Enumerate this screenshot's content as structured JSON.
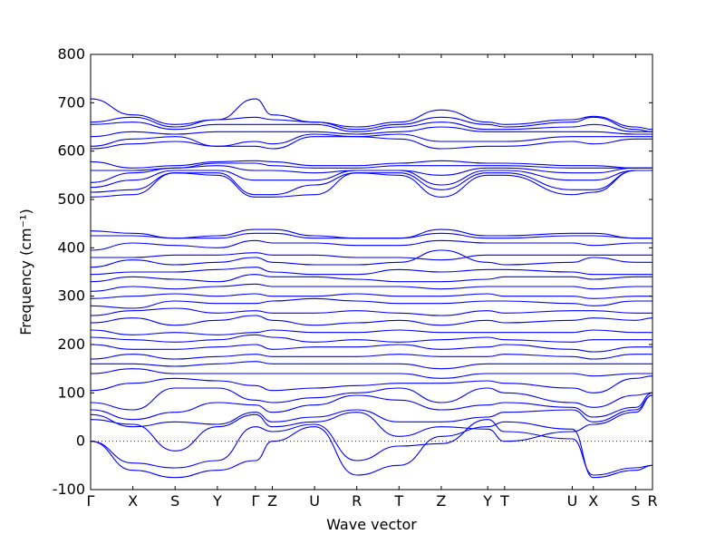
{
  "chart_data": {
    "type": "line",
    "xlabel": "Wave vector",
    "ylabel": "Frequency (cm⁻¹)",
    "ylim": [
      -100,
      800
    ],
    "y_ticks": [
      -100,
      0,
      100,
      200,
      300,
      400,
      500,
      600,
      700,
      800
    ],
    "x_points": [
      {
        "label": "Γ",
        "pos": 0.0
      },
      {
        "label": "X",
        "pos": 1.0
      },
      {
        "label": "S",
        "pos": 2.0
      },
      {
        "label": "Y",
        "pos": 3.0
      },
      {
        "label": "Γ",
        "pos": 3.9
      },
      {
        "label": "Z",
        "pos": 4.3
      },
      {
        "label": "U",
        "pos": 5.3
      },
      {
        "label": "R",
        "pos": 6.3
      },
      {
        "label": "T",
        "pos": 7.3
      },
      {
        "label": "Z",
        "pos": 8.3
      },
      {
        "label": "Y",
        "pos": 9.4
      },
      {
        "label": "T",
        "pos": 9.8
      },
      {
        "label": "U",
        "pos": 11.4
      },
      {
        "label": "X",
        "pos": 11.9
      },
      {
        "label": "S",
        "pos": 12.9
      },
      {
        "label": "R",
        "pos": 13.3
      }
    ],
    "zero_line": {
      "y": 0,
      "style": "dotted"
    },
    "grid": false,
    "legend": "none",
    "color": "#0000ff",
    "bands": [
      {
        "mode": "acoustic-1",
        "values": [
          0,
          -60,
          -75,
          -60,
          -40,
          0,
          30,
          -70,
          -50,
          10,
          30,
          40,
          25,
          -75,
          -60,
          -50
        ]
      },
      {
        "mode": "acoustic-2",
        "values": [
          0,
          -45,
          -55,
          -40,
          30,
          20,
          35,
          -40,
          -10,
          -5,
          45,
          20,
          5,
          -70,
          -55,
          -50
        ]
      },
      {
        "mode": "acoustic-3",
        "values": [
          45,
          35,
          -20,
          30,
          55,
          30,
          40,
          60,
          10,
          30,
          25,
          0,
          20,
          35,
          60,
          95
        ]
      },
      {
        "mode": "optical-01",
        "values": [
          55,
          30,
          40,
          35,
          60,
          40,
          50,
          65,
          40,
          40,
          50,
          60,
          65,
          40,
          65,
          95
        ]
      },
      {
        "mode": "optical-02",
        "values": [
          65,
          45,
          60,
          80,
          75,
          60,
          75,
          95,
          85,
          65,
          75,
          80,
          70,
          50,
          70,
          100
        ]
      },
      {
        "mode": "optical-03",
        "values": [
          80,
          65,
          110,
          110,
          85,
          80,
          90,
          100,
          110,
          80,
          110,
          100,
          80,
          70,
          95,
          100
        ]
      },
      {
        "mode": "optical-04",
        "values": [
          105,
          120,
          130,
          125,
          115,
          105,
          110,
          115,
          120,
          120,
          125,
          120,
          110,
          100,
          130,
          135
        ]
      },
      {
        "mode": "optical-05",
        "values": [
          140,
          150,
          140,
          140,
          140,
          140,
          140,
          140,
          140,
          130,
          140,
          140,
          140,
          135,
          140,
          140
        ]
      },
      {
        "mode": "optical-06",
        "values": [
          160,
          160,
          155,
          160,
          165,
          160,
          160,
          160,
          160,
          150,
          160,
          160,
          160,
          160,
          160,
          160
        ]
      },
      {
        "mode": "optical-07",
        "values": [
          170,
          180,
          170,
          175,
          180,
          175,
          175,
          175,
          180,
          175,
          175,
          180,
          175,
          170,
          180,
          180
        ]
      },
      {
        "mode": "optical-08",
        "values": [
          200,
          190,
          190,
          195,
          200,
          190,
          195,
          195,
          200,
          190,
          195,
          200,
          190,
          185,
          195,
          195
        ]
      },
      {
        "mode": "optical-09",
        "values": [
          215,
          210,
          205,
          210,
          220,
          215,
          205,
          210,
          205,
          210,
          215,
          210,
          205,
          210,
          210,
          210
        ]
      },
      {
        "mode": "optical-10",
        "values": [
          230,
          220,
          225,
          220,
          225,
          230,
          225,
          225,
          230,
          225,
          225,
          225,
          225,
          230,
          225,
          225
        ]
      },
      {
        "mode": "optical-11",
        "values": [
          245,
          255,
          240,
          250,
          260,
          250,
          240,
          245,
          250,
          240,
          250,
          245,
          250,
          255,
          250,
          255
        ]
      },
      {
        "mode": "optical-12",
        "values": [
          260,
          270,
          275,
          265,
          270,
          265,
          265,
          270,
          265,
          260,
          270,
          265,
          270,
          270,
          265,
          265
        ]
      },
      {
        "mode": "optical-13",
        "values": [
          280,
          275,
          290,
          285,
          285,
          290,
          295,
          290,
          285,
          285,
          290,
          290,
          285,
          280,
          290,
          290
        ]
      },
      {
        "mode": "optical-14",
        "values": [
          295,
          300,
          305,
          300,
          305,
          300,
          300,
          305,
          300,
          300,
          305,
          300,
          300,
          295,
          300,
          300
        ]
      },
      {
        "mode": "optical-15",
        "values": [
          310,
          320,
          315,
          320,
          325,
          320,
          320,
          320,
          320,
          315,
          320,
          320,
          320,
          315,
          320,
          320
        ]
      },
      {
        "mode": "optical-16",
        "values": [
          330,
          340,
          335,
          330,
          345,
          340,
          340,
          335,
          330,
          330,
          335,
          340,
          340,
          335,
          340,
          340
        ]
      },
      {
        "mode": "optical-17",
        "values": [
          345,
          350,
          350,
          355,
          360,
          350,
          345,
          345,
          355,
          350,
          355,
          355,
          350,
          345,
          345,
          345
        ]
      },
      {
        "mode": "optical-18",
        "values": [
          360,
          375,
          365,
          370,
          380,
          370,
          365,
          365,
          370,
          395,
          370,
          365,
          370,
          380,
          370,
          370
        ]
      },
      {
        "mode": "optical-19",
        "values": [
          380,
          380,
          385,
          385,
          390,
          385,
          385,
          380,
          380,
          375,
          385,
          385,
          385,
          385,
          385,
          385
        ]
      },
      {
        "mode": "optical-20",
        "values": [
          395,
          410,
          405,
          400,
          415,
          410,
          410,
          405,
          405,
          415,
          410,
          410,
          410,
          405,
          410,
          410
        ]
      },
      {
        "mode": "optical-21",
        "values": [
          425,
          425,
          420,
          420,
          430,
          430,
          420,
          420,
          420,
          430,
          420,
          420,
          425,
          425,
          420,
          420
        ]
      },
      {
        "mode": "optical-22",
        "values": [
          435,
          430,
          420,
          425,
          438,
          438,
          425,
          420,
          420,
          438,
          425,
          425,
          430,
          430,
          420,
          420
        ]
      },
      {
        "mode": "optical-23",
        "values": [
          505,
          510,
          555,
          550,
          505,
          505,
          510,
          555,
          550,
          505,
          550,
          550,
          510,
          515,
          560,
          560
        ]
      },
      {
        "mode": "optical-24",
        "values": [
          515,
          520,
          555,
          555,
          510,
          510,
          530,
          555,
          555,
          520,
          555,
          555,
          520,
          520,
          560,
          560
        ]
      },
      {
        "mode": "optical-25",
        "values": [
          525,
          540,
          560,
          560,
          540,
          540,
          540,
          560,
          560,
          530,
          560,
          560,
          540,
          540,
          560,
          560
        ]
      },
      {
        "mode": "optical-26",
        "values": [
          535,
          555,
          565,
          570,
          560,
          560,
          555,
          560,
          560,
          550,
          565,
          565,
          555,
          555,
          565,
          565
        ]
      },
      {
        "mode": "optical-27",
        "values": [
          560,
          560,
          565,
          575,
          575,
          570,
          565,
          565,
          570,
          570,
          570,
          570,
          565,
          565,
          565,
          565
        ]
      },
      {
        "mode": "optical-28",
        "values": [
          578,
          565,
          570,
          578,
          580,
          578,
          570,
          570,
          575,
          580,
          575,
          575,
          570,
          570,
          565,
          565
        ]
      },
      {
        "mode": "optical-29",
        "values": [
          605,
          615,
          620,
          610,
          610,
          605,
          630,
          630,
          625,
          605,
          610,
          610,
          620,
          615,
          625,
          625
        ]
      },
      {
        "mode": "optical-30",
        "values": [
          610,
          625,
          630,
          610,
          620,
          615,
          635,
          630,
          635,
          620,
          620,
          620,
          630,
          630,
          630,
          630
        ]
      },
      {
        "mode": "optical-31",
        "values": [
          630,
          640,
          635,
          640,
          640,
          640,
          640,
          635,
          640,
          650,
          640,
          640,
          640,
          640,
          635,
          635
        ]
      },
      {
        "mode": "optical-32",
        "values": [
          655,
          660,
          645,
          655,
          655,
          655,
          655,
          640,
          650,
          660,
          645,
          645,
          650,
          655,
          640,
          640
        ]
      },
      {
        "mode": "optical-33",
        "values": [
          660,
          670,
          650,
          665,
          670,
          665,
          660,
          645,
          655,
          670,
          655,
          650,
          660,
          670,
          645,
          640
        ]
      },
      {
        "mode": "optical-34",
        "values": [
          708,
          675,
          655,
          665,
          708,
          675,
          660,
          650,
          660,
          685,
          660,
          655,
          665,
          672,
          650,
          645
        ]
      }
    ]
  }
}
